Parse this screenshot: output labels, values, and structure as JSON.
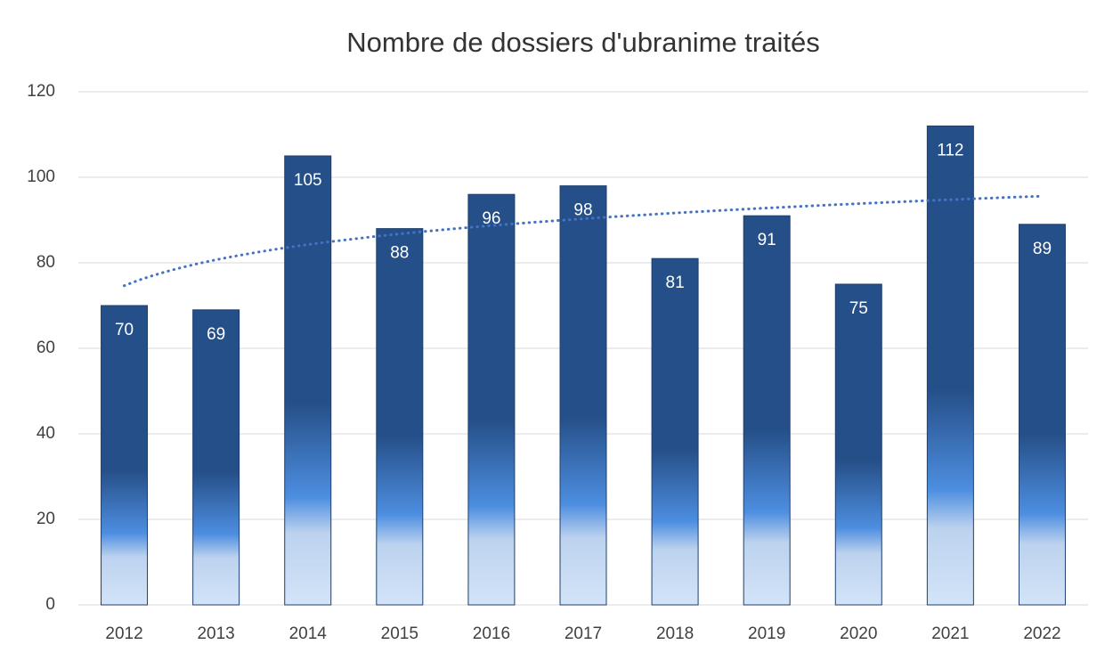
{
  "chart_data": {
    "type": "bar",
    "title": "Nombre de dossiers d'ubranime traités",
    "categories": [
      "2012",
      "2013",
      "2014",
      "2015",
      "2016",
      "2017",
      "2018",
      "2019",
      "2020",
      "2021",
      "2022"
    ],
    "values": [
      70,
      69,
      105,
      88,
      96,
      98,
      81,
      91,
      75,
      112,
      89
    ],
    "color": "#254f88",
    "trendline": {
      "type": "logarithmic",
      "color": "#4472c4"
    },
    "ylim": [
      0,
      120
    ],
    "yticks": [
      0,
      20,
      40,
      60,
      80,
      100,
      120
    ],
    "grid": true
  }
}
